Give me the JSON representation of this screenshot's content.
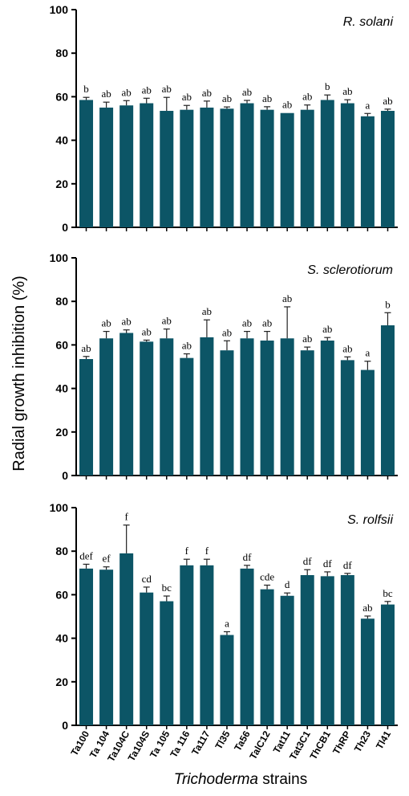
{
  "chart_data": {
    "type": "bar",
    "ylabel": "Radial growth inhibition (%)",
    "xlabel_italic": "Trichoderma",
    "xlabel_rest": " strains",
    "categories": [
      "Ta100",
      "Ta 104",
      "Ta104C",
      "Ta104S",
      "Ta 105",
      "Ta 116",
      "Ta117",
      "Tl35",
      "Ta56",
      "TalC12",
      "Tat11",
      "Tat3C1",
      "ThCB1",
      "ThRP",
      "Th23",
      "Tl41"
    ],
    "ylim": [
      0,
      100
    ],
    "yticks": [
      "0",
      "20",
      "40",
      "60",
      "80",
      "100"
    ],
    "bar_color": "#0c5566",
    "panels": [
      {
        "title": "R. solani",
        "values": [
          58.5,
          55,
          56,
          57,
          53.5,
          54,
          55,
          54.5,
          57,
          54,
          52.5,
          54,
          58.5,
          57,
          51,
          53.5
        ],
        "errors": [
          1.2,
          2.5,
          2.2,
          2.3,
          6.2,
          2.0,
          3.0,
          0.8,
          1.3,
          1.4,
          0,
          2.2,
          2.3,
          1.6,
          1.3,
          0.8
        ],
        "labels": [
          "b",
          "ab",
          "ab",
          "ab",
          "ab",
          "ab",
          "ab",
          "ab",
          "ab",
          "ab",
          "ab",
          "ab",
          "b",
          "ab",
          "a",
          "ab"
        ]
      },
      {
        "title": "S. sclerotiorum",
        "values": [
          53.5,
          63,
          65.5,
          61.5,
          63,
          54,
          63.5,
          57.5,
          63,
          62,
          63,
          57.5,
          62,
          53,
          48.5,
          69
        ],
        "errors": [
          1.2,
          3.2,
          1.4,
          0.7,
          4.3,
          1.9,
          8.0,
          4.4,
          3.2,
          4.2,
          14.5,
          1.5,
          1.4,
          1.5,
          4.0,
          5.8
        ],
        "labels": [
          "ab",
          "ab",
          "ab",
          "ab",
          "ab",
          "ab",
          "ab",
          "ab",
          "ab",
          "ab",
          "ab",
          "ab",
          "ab",
          "ab",
          "a",
          "b"
        ]
      },
      {
        "title": "S. rolfsii",
        "values": [
          72,
          71.5,
          79,
          61,
          57,
          73.5,
          73.5,
          41.5,
          72,
          62.5,
          59.5,
          69,
          68.5,
          69,
          49,
          55.5
        ],
        "errors": [
          2.0,
          1.3,
          13.0,
          2.5,
          2.4,
          2.8,
          2.8,
          1.5,
          1.5,
          1.9,
          1.3,
          2.5,
          2.0,
          0.8,
          1.2,
          1.4
        ],
        "labels": [
          "def",
          "ef",
          "f",
          "cd",
          "bc",
          "f",
          "f",
          "a",
          "df",
          "cde",
          "d",
          "df",
          "df",
          "df",
          "ab",
          "bc"
        ]
      }
    ]
  }
}
